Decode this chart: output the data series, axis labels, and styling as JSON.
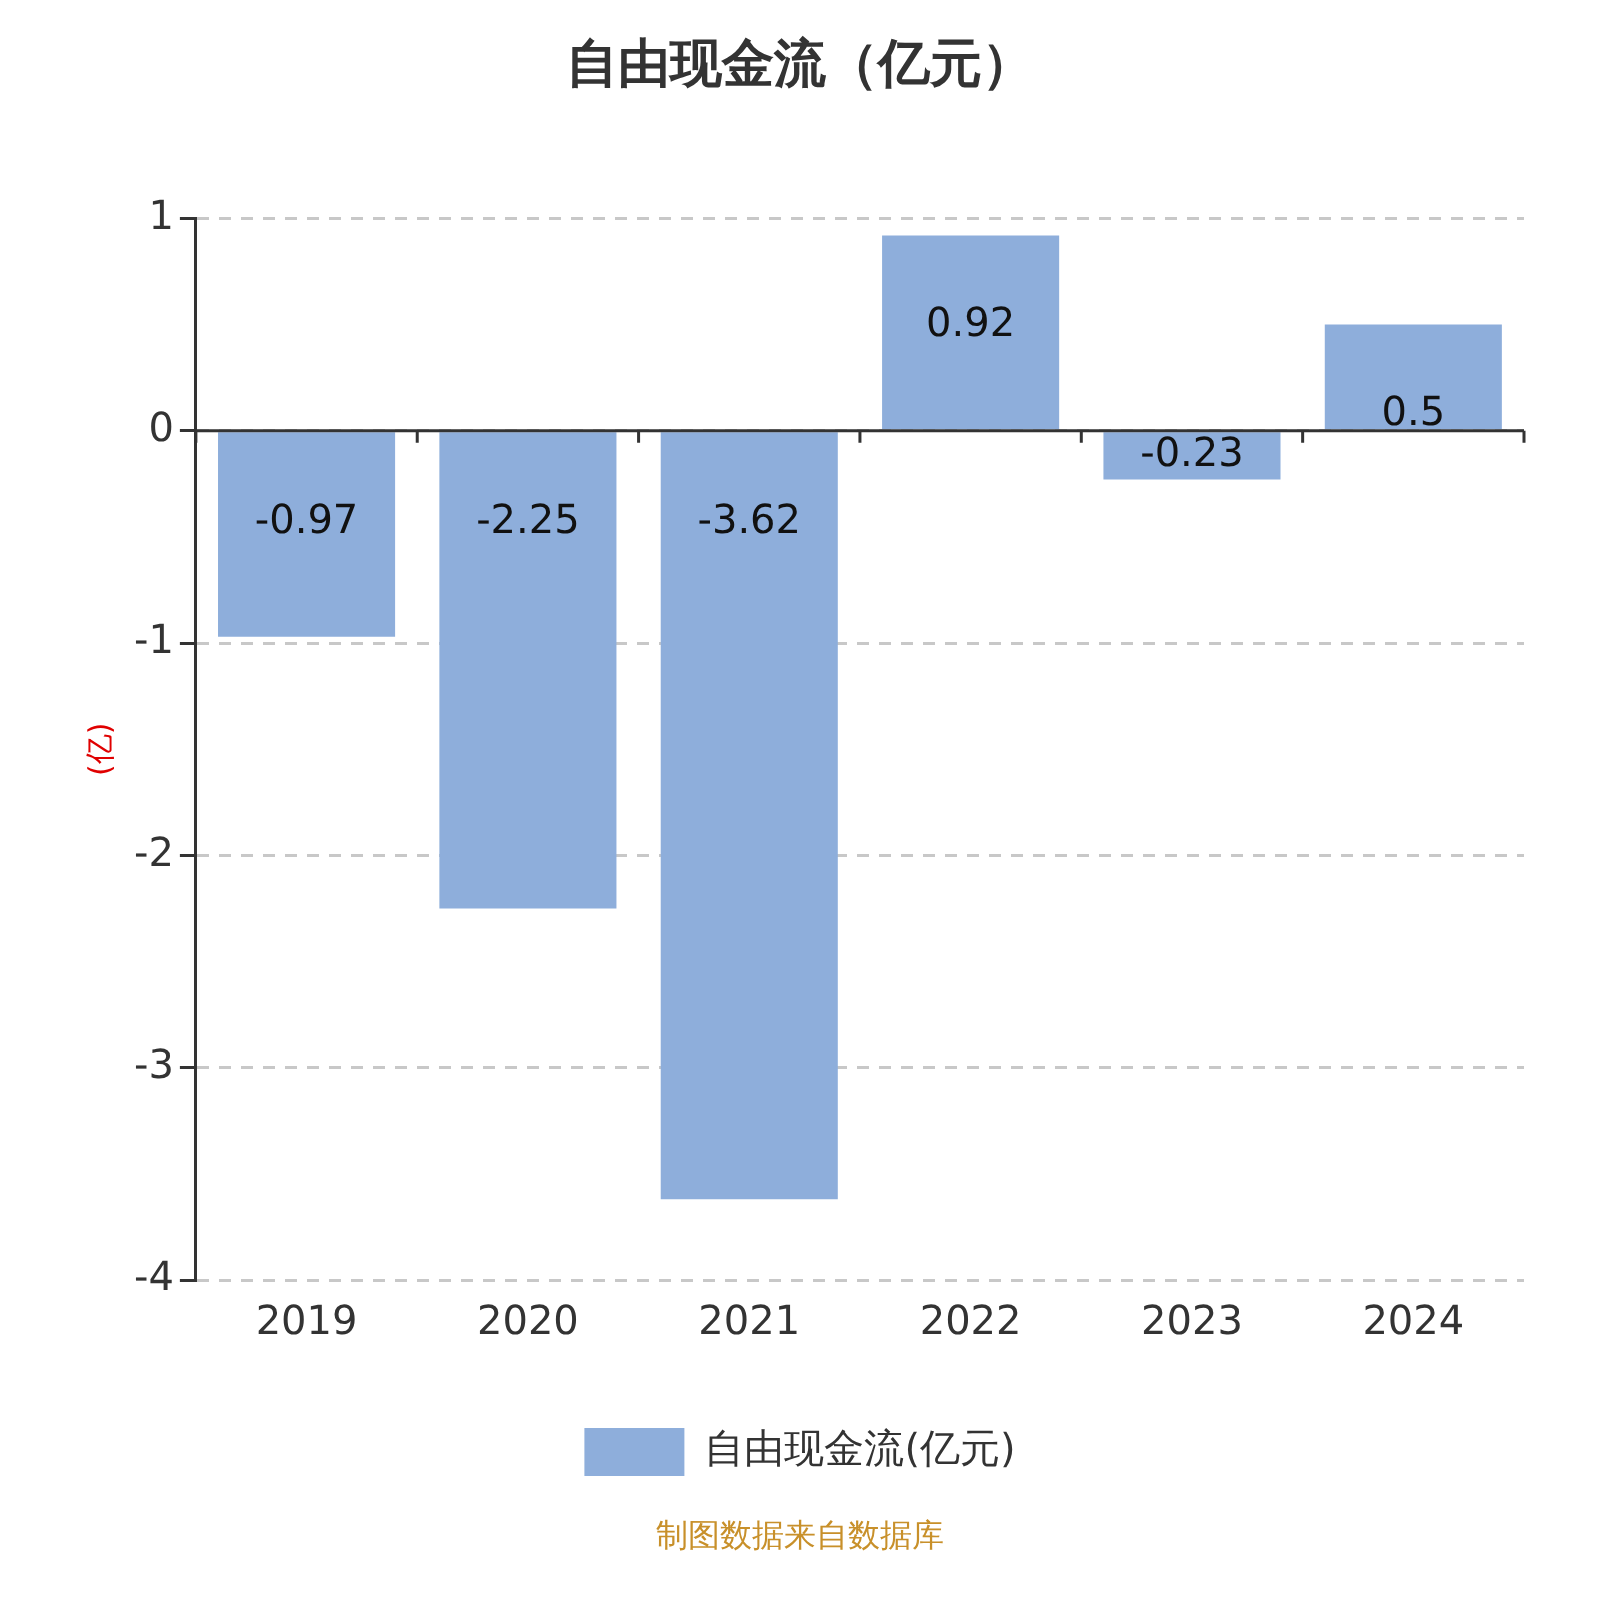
{
  "chart_data": {
    "type": "bar",
    "title": "自由现金流（亿元）",
    "ylabel": "(亿)",
    "categories": [
      "2019",
      "2020",
      "2021",
      "2022",
      "2023",
      "2024"
    ],
    "series": [
      {
        "name": "自由现金流(亿元)",
        "color": "#8eaedb",
        "values": [
          -0.97,
          -2.25,
          -3.62,
          0.92,
          -0.23,
          0.5
        ]
      }
    ],
    "ylim": [
      -4,
      1
    ],
    "yticks": [
      -4,
      -3,
      -2,
      -1,
      0,
      1
    ],
    "grid": "y",
    "legend": "bottom",
    "data_labels": true,
    "annotations": [
      "制图数据来自数据库"
    ]
  }
}
